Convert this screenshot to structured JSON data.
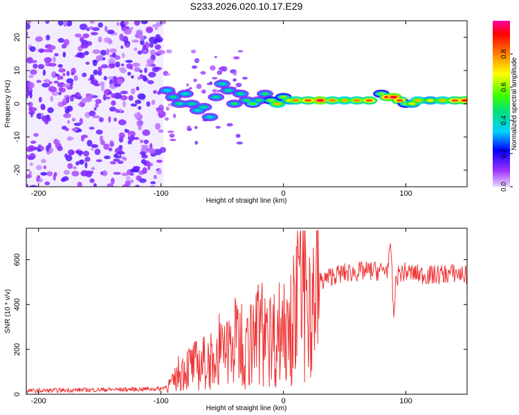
{
  "title": "S233.2026.020.10.17.E29",
  "colors": {
    "signal": "#ee3333",
    "axis": "#000000"
  },
  "chart_data": [
    {
      "type": "heatmap",
      "xlabel": "Height of straight line (km)",
      "ylabel": "Frequency (Hz)",
      "xlim": [
        -210,
        150
      ],
      "ylim": [
        -25,
        25
      ],
      "xticks": [
        "-200",
        "-100",
        "0",
        "100"
      ],
      "yticks": [
        "20",
        "10",
        "0",
        "-10",
        "-20"
      ],
      "colorbar_label": "Normalized spectral amplitude",
      "colorbar_ticks": [
        "0.0",
        "0.2",
        "0.4",
        "0.6",
        "0.8"
      ],
      "colorbar_range": [
        0,
        1
      ],
      "ridge": [
        {
          "x": -95,
          "y": 4,
          "a": 0.35
        },
        {
          "x": -90,
          "y": 2,
          "a": 0.45
        },
        {
          "x": -85,
          "y": 0,
          "a": 0.45
        },
        {
          "x": -80,
          "y": 3,
          "a": 0.4
        },
        {
          "x": -75,
          "y": 0,
          "a": 0.45
        },
        {
          "x": -70,
          "y": -2,
          "a": 0.4
        },
        {
          "x": -65,
          "y": -1,
          "a": 0.45
        },
        {
          "x": -60,
          "y": -4,
          "a": 0.4
        },
        {
          "x": -55,
          "y": 2,
          "a": 0.45
        },
        {
          "x": -50,
          "y": 6,
          "a": 0.4
        },
        {
          "x": -45,
          "y": 4,
          "a": 0.45
        },
        {
          "x": -40,
          "y": 0,
          "a": 0.5
        },
        {
          "x": -35,
          "y": 3,
          "a": 0.45
        },
        {
          "x": -30,
          "y": 1,
          "a": 0.5
        },
        {
          "x": -25,
          "y": 0,
          "a": 0.55
        },
        {
          "x": -20,
          "y": 1,
          "a": 0.5
        },
        {
          "x": -15,
          "y": 3,
          "a": 0.5
        },
        {
          "x": -10,
          "y": 1,
          "a": 0.6
        },
        {
          "x": -5,
          "y": 0,
          "a": 0.75
        },
        {
          "x": 0,
          "y": 2,
          "a": 0.6
        },
        {
          "x": 5,
          "y": 1,
          "a": 0.7
        },
        {
          "x": 10,
          "y": 1,
          "a": 0.8
        },
        {
          "x": 20,
          "y": 1,
          "a": 0.85
        },
        {
          "x": 30,
          "y": 1,
          "a": 0.95
        },
        {
          "x": 40,
          "y": 1,
          "a": 0.8
        },
        {
          "x": 50,
          "y": 1,
          "a": 0.75
        },
        {
          "x": 60,
          "y": 1,
          "a": 0.8
        },
        {
          "x": 70,
          "y": 1,
          "a": 0.85
        },
        {
          "x": 80,
          "y": 3,
          "a": 0.6
        },
        {
          "x": 85,
          "y": 2,
          "a": 0.9
        },
        {
          "x": 90,
          "y": 2,
          "a": 0.95
        },
        {
          "x": 95,
          "y": 1,
          "a": 0.85
        },
        {
          "x": 100,
          "y": 0,
          "a": 0.6
        },
        {
          "x": 105,
          "y": 0,
          "a": 0.7
        },
        {
          "x": 110,
          "y": 1,
          "a": 0.75
        },
        {
          "x": 120,
          "y": 1,
          "a": 0.7
        },
        {
          "x": 130,
          "y": 1,
          "a": 0.75
        },
        {
          "x": 140,
          "y": 1,
          "a": 0.85
        },
        {
          "x": 148,
          "y": 1,
          "a": 0.9
        }
      ]
    },
    {
      "type": "line",
      "xlabel": "Height of straight line (km)",
      "ylabel": "SNR (10 * v/v)",
      "xlim": [
        -210,
        150
      ],
      "ylim": [
        0,
        740
      ],
      "xticks": [
        "-200",
        "-100",
        "0",
        "100"
      ],
      "yticks": [
        "600",
        "400",
        "200",
        "0"
      ],
      "series": [
        {
          "name": "SNR",
          "x": [
            -210,
            -180,
            -150,
            -120,
            -100,
            -90,
            -85,
            -80,
            -70,
            -60,
            -50,
            -45,
            -40,
            -35,
            -30,
            -25,
            -20,
            -15,
            -10,
            -5,
            0,
            5,
            10,
            15,
            20,
            25,
            30,
            40,
            50,
            60,
            70,
            80,
            85,
            88,
            90,
            92,
            95,
            100,
            110,
            120,
            130,
            140,
            150
          ],
          "y": [
            15,
            18,
            20,
            22,
            25,
            50,
            100,
            120,
            130,
            150,
            180,
            200,
            230,
            250,
            200,
            240,
            280,
            300,
            250,
            260,
            320,
            350,
            380,
            420,
            450,
            470,
            500,
            530,
            540,
            545,
            550,
            550,
            560,
            650,
            330,
            520,
            540,
            545,
            535,
            530,
            535,
            540,
            530
          ]
        }
      ]
    }
  ]
}
